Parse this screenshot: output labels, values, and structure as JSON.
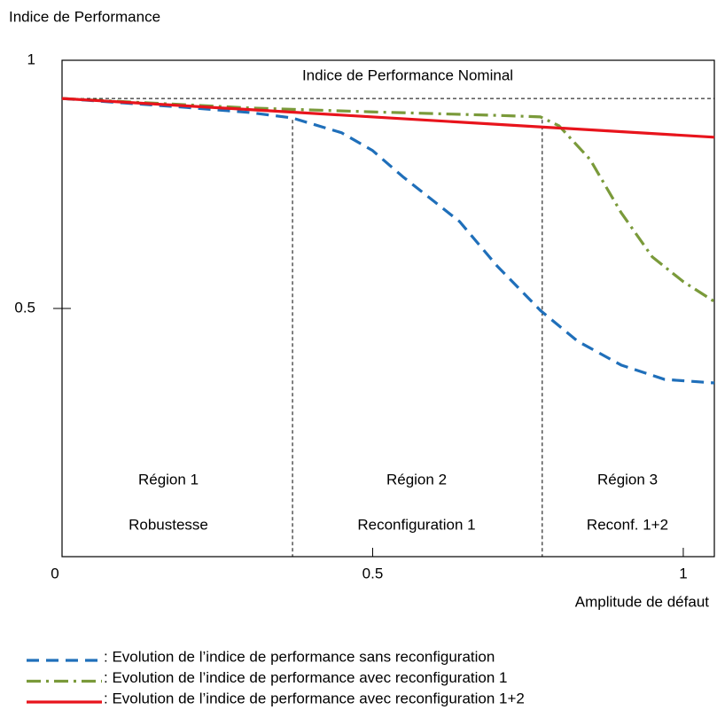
{
  "chart_data": {
    "type": "line",
    "y_label": "Indice de Performance",
    "x_label": "Amplitude de défaut",
    "xlim": [
      0,
      1.05
    ],
    "ylim": [
      0,
      1
    ],
    "xticks": [
      0,
      0.5,
      1
    ],
    "yticks": [
      0.5,
      1
    ],
    "nominal": {
      "label": "Indice de Performance Nominal",
      "value": 0.923
    },
    "region_bounds": [
      0.371,
      0.773
    ],
    "regions": [
      {
        "name": "Région 1",
        "label": "Robustesse"
      },
      {
        "name": "Région 2",
        "label": "Reconfiguration 1"
      },
      {
        "name": "Région 3",
        "label": "Reconf. 1+2"
      }
    ],
    "series": [
      {
        "name": ": Evolution de l’indice de performance sans reconfiguration",
        "color": "#1f6fba",
        "style": "dashed",
        "x": [
          0,
          0.1,
          0.2,
          0.3,
          0.37,
          0.45,
          0.5,
          0.55,
          0.64,
          0.7,
          0.77,
          0.83,
          0.9,
          0.97,
          1.05
        ],
        "values": [
          0.923,
          0.914,
          0.905,
          0.895,
          0.884,
          0.854,
          0.818,
          0.764,
          0.675,
          0.586,
          0.496,
          0.434,
          0.386,
          0.357,
          0.35
        ]
      },
      {
        "name": ": Evolution de l’indice de performance avec reconfiguration 1",
        "color": "#7a9a3a",
        "style": "dashdot",
        "x": [
          0,
          0.3,
          0.5,
          0.7,
          0.77,
          0.8,
          0.85,
          0.9,
          0.95,
          1.0,
          1.05
        ],
        "values": [
          0.923,
          0.904,
          0.896,
          0.889,
          0.886,
          0.868,
          0.8,
          0.693,
          0.604,
          0.554,
          0.514
        ]
      },
      {
        "name": ": Evolution de l’indice de performance avec reconfiguration 1+2",
        "color": "#e8141c",
        "style": "solid",
        "x": [
          0,
          1.05
        ],
        "values": [
          0.923,
          0.845
        ]
      }
    ]
  }
}
